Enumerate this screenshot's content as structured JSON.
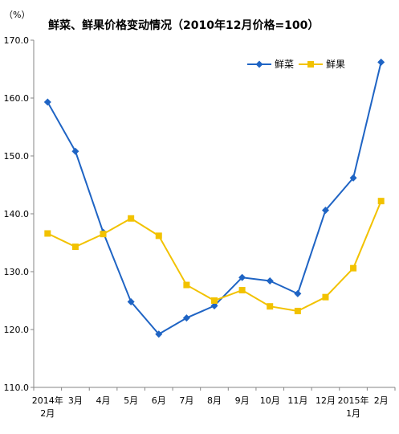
{
  "chart_data": {
    "type": "line",
    "title": "鲜菜、鲜果价格变动情况（2010年12月价格=100）",
    "unit_label": "（%）",
    "categories": [
      [
        "2014年",
        "2月"
      ],
      [
        "3月"
      ],
      [
        "4月"
      ],
      [
        "5月"
      ],
      [
        "6月"
      ],
      [
        "7月"
      ],
      [
        "8月"
      ],
      [
        "9月"
      ],
      [
        "10月"
      ],
      [
        "11月"
      ],
      [
        "12月"
      ],
      [
        "2015年",
        "1月"
      ],
      [
        "2月"
      ]
    ],
    "ylim": [
      110,
      170
    ],
    "yticks": [
      110,
      120,
      130,
      140,
      150,
      160,
      170
    ],
    "ytick_labels": [
      "110.0",
      "120.0",
      "130.0",
      "140.0",
      "150.0",
      "160.0",
      "170.0"
    ],
    "legend_position": "top-right",
    "grid": false,
    "series": [
      {
        "name": "鲜菜",
        "color": "#1F64C4",
        "marker": "diamond",
        "values": [
          159.3,
          150.8,
          136.8,
          124.8,
          119.2,
          122.0,
          124.1,
          129.0,
          128.4,
          126.2,
          140.6,
          146.2,
          166.2
        ]
      },
      {
        "name": "鲜果",
        "color": "#F2C200",
        "marker": "square",
        "values": [
          136.6,
          134.3,
          136.5,
          139.2,
          136.2,
          127.7,
          125.0,
          126.8,
          124.0,
          123.2,
          125.6,
          130.6,
          142.2
        ]
      }
    ]
  }
}
